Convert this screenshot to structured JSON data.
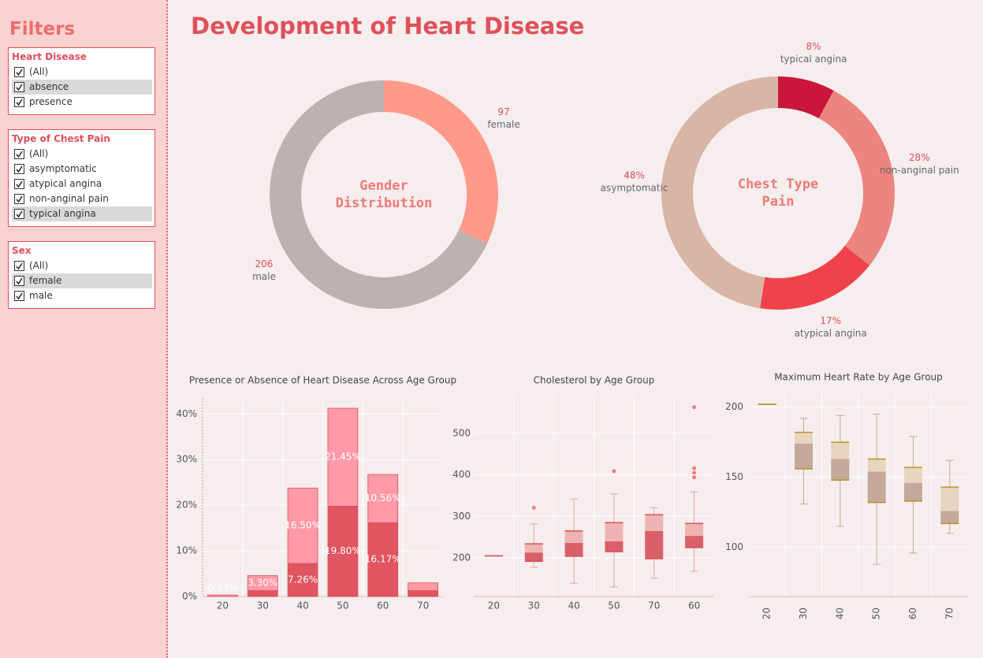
{
  "title": "Development of Heart Disease",
  "sidebar_title": "Filters",
  "filters": [
    {
      "title": "Heart Disease",
      "options": [
        "(All)",
        "absence",
        "presence"
      ],
      "highlighted": 1
    },
    {
      "title": "Type of Chest Pain",
      "options": [
        "(All)",
        "asymptomatic",
        "atypical angina",
        "non-anginal pain",
        "typical angina"
      ],
      "highlighted": 4
    },
    {
      "title": "Sex",
      "options": [
        "(All)",
        "female",
        "male"
      ],
      "highlighted": 1
    }
  ],
  "chart_data": [
    {
      "type": "pie",
      "title": "Gender Distribution",
      "categories": [
        "female",
        "male"
      ],
      "values": [
        97,
        206
      ],
      "colors": [
        "#ff9a8a",
        "#bab3af"
      ]
    },
    {
      "type": "pie",
      "title": "Chest Type Pain",
      "categories": [
        "typical angina",
        "non-anginal pain",
        "atypical angina",
        "asymptomatic"
      ],
      "values": [
        8,
        28,
        17,
        48
      ],
      "value_labels": [
        "8%",
        "28%",
        "17%",
        "48%"
      ],
      "colors": [
        "#c9163a",
        "#ec8480",
        "#ef424a",
        "#d9b5a6"
      ]
    },
    {
      "type": "stacked_bar",
      "title": "Presence or Absence of Heart Disease Across Age Group",
      "categories": [
        "20",
        "30",
        "40",
        "50",
        "60",
        "70"
      ],
      "series": [
        {
          "color": "#e05561",
          "values": [
            0,
            1.3,
            7.26,
            19.8,
            16.17,
            1.3
          ],
          "value_labels": [
            null,
            null,
            "7.26%",
            "19.80%",
            "16.17%",
            null
          ]
        },
        {
          "color": "#ff9aa6",
          "values": [
            0.33,
            3.3,
            16.5,
            21.45,
            10.56,
            1.7
          ],
          "value_labels": [
            "0.33%",
            "3.30%",
            "16.50%",
            "21.45%",
            "10.56%",
            null
          ]
        }
      ],
      "ylim": [
        0,
        43.5
      ],
      "yticks": [
        {
          "value": 0,
          "label": "0%"
        },
        {
          "value": 10,
          "label": "10%"
        },
        {
          "value": 20,
          "label": "20%"
        },
        {
          "value": 30,
          "label": "30%"
        },
        {
          "value": 40,
          "label": "40%"
        }
      ],
      "grid": true
    },
    {
      "type": "box",
      "title": "Cholesterol by Age Group",
      "categories": [
        "20",
        "30",
        "40",
        "50",
        "70",
        "60"
      ],
      "boxes": [
        {
          "min": 205,
          "q1": 205,
          "median": 205,
          "q3": 205,
          "max": 205,
          "outliers": []
        },
        {
          "min": 177,
          "q1": 192,
          "median": 213,
          "q3": 234,
          "max": 282,
          "outliers": [
            321
          ]
        },
        {
          "min": 139,
          "q1": 204,
          "median": 236,
          "q3": 265,
          "max": 342,
          "outliers": []
        },
        {
          "min": 130,
          "q1": 215,
          "median": 240,
          "q3": 285,
          "max": 354,
          "outliers": [
            409
          ]
        },
        {
          "min": 151,
          "q1": 198,
          "median": 265,
          "q3": 304,
          "max": 321,
          "outliers": []
        },
        {
          "min": 168,
          "q1": 225,
          "median": 253,
          "q3": 283,
          "max": 359,
          "outliers": [
            394,
            405,
            416,
            563
          ]
        }
      ],
      "lower_color": "#d9606a",
      "upper_color": "#f0b3b3",
      "whisker_color": "#f0a0a4",
      "edge_color": "#d9505c",
      "ylim": [
        107,
        589
      ],
      "yticks": [
        200,
        300,
        400,
        500
      ],
      "grid": true
    },
    {
      "type": "box",
      "title": "Maximum Heart Rate by Age Group",
      "categories": [
        "20",
        "30",
        "40",
        "50",
        "60",
        "70"
      ],
      "boxes": [
        {
          "min": 202,
          "q1": 202,
          "median": 202,
          "q3": 202,
          "max": 202,
          "outliers": []
        },
        {
          "min": 131,
          "q1": 156,
          "median": 174,
          "q3": 182,
          "max": 192,
          "outliers": []
        },
        {
          "min": 115,
          "q1": 148,
          "median": 163,
          "q3": 175,
          "max": 194,
          "outliers": []
        },
        {
          "min": 88,
          "q1": 132,
          "median": 154,
          "q3": 163,
          "max": 195,
          "outliers": []
        },
        {
          "min": 96,
          "q1": 133,
          "median": 146,
          "q3": 157,
          "max": 179,
          "outliers": []
        },
        {
          "min": 110,
          "q1": 117,
          "median": 126,
          "q3": 143,
          "max": 162,
          "outliers": []
        }
      ],
      "lower_color": "#c4a89a",
      "upper_color": "#e8d5c0",
      "whisker_color": "#c9a896",
      "edge_color": "#b8961e",
      "ylim": [
        65,
        211
      ],
      "yticks": [
        100,
        150,
        200
      ],
      "grid": true,
      "rotate_x_labels": true
    }
  ]
}
